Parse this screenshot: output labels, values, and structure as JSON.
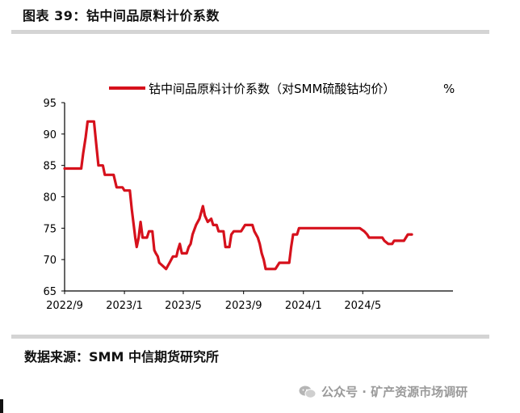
{
  "header": {
    "title": "图表 39：钴中间品原料计价系数"
  },
  "footer": {
    "source": "数据来源：SMM 中信期货研究所",
    "watermark": "公众号 · 矿产资源市场调研",
    "watermark_icon": "wechat-icon"
  },
  "chart_data": {
    "type": "line",
    "title": "",
    "xlabel": "",
    "ylabel": "",
    "legend": {
      "position": "top-right",
      "unit": "%"
    },
    "ylim": [
      65,
      95
    ],
    "yticks": [
      65,
      70,
      75,
      80,
      85,
      90,
      95
    ],
    "xlim": [
      "2022-09-01",
      "2024-11-01"
    ],
    "xticks": [
      {
        "date": "2022-09-01",
        "label": "2022/9"
      },
      {
        "date": "2023-01-01",
        "label": "2023/1"
      },
      {
        "date": "2023-05-01",
        "label": "2023/5"
      },
      {
        "date": "2023-09-01",
        "label": "2023/9"
      },
      {
        "date": "2024-01-01",
        "label": "2024/1"
      },
      {
        "date": "2024-05-01",
        "label": "2024/5"
      }
    ],
    "colors": {
      "series": "#d6111c",
      "axis": "#000000"
    },
    "series": [
      {
        "name": "钴中间品原料计价系数（对SMM硫酸钴均价）",
        "points": [
          [
            "2022-09-01",
            84.5
          ],
          [
            "2022-10-05",
            84.5
          ],
          [
            "2022-10-09",
            87.0
          ],
          [
            "2022-10-14",
            89.5
          ],
          [
            "2022-10-18",
            92.0
          ],
          [
            "2022-10-31",
            92.0
          ],
          [
            "2022-11-05",
            88.0
          ],
          [
            "2022-11-09",
            85.0
          ],
          [
            "2022-11-18",
            85.0
          ],
          [
            "2022-11-22",
            83.5
          ],
          [
            "2022-12-10",
            83.5
          ],
          [
            "2022-12-16",
            81.5
          ],
          [
            "2022-12-28",
            81.5
          ],
          [
            "2023-01-01",
            81.0
          ],
          [
            "2023-01-12",
            81.0
          ],
          [
            "2023-01-16",
            78.0
          ],
          [
            "2023-01-20",
            75.5
          ],
          [
            "2023-01-23",
            73.5
          ],
          [
            "2023-01-26",
            72.0
          ],
          [
            "2023-01-30",
            73.5
          ],
          [
            "2023-02-03",
            76.0
          ],
          [
            "2023-02-07",
            73.5
          ],
          [
            "2023-02-16",
            73.5
          ],
          [
            "2023-02-20",
            74.5
          ],
          [
            "2023-02-27",
            74.5
          ],
          [
            "2023-03-03",
            71.5
          ],
          [
            "2023-03-06",
            71.0
          ],
          [
            "2023-03-10",
            70.5
          ],
          [
            "2023-03-13",
            69.5
          ],
          [
            "2023-03-20",
            69.0
          ],
          [
            "2023-03-27",
            68.5
          ],
          [
            "2023-04-03",
            69.5
          ],
          [
            "2023-04-10",
            70.5
          ],
          [
            "2023-04-17",
            70.5
          ],
          [
            "2023-04-20",
            71.5
          ],
          [
            "2023-04-24",
            72.5
          ],
          [
            "2023-04-28",
            71.0
          ],
          [
            "2023-05-08",
            71.0
          ],
          [
            "2023-05-12",
            72.0
          ],
          [
            "2023-05-16",
            72.5
          ],
          [
            "2023-05-20",
            74.0
          ],
          [
            "2023-05-27",
            75.5
          ],
          [
            "2023-06-03",
            76.5
          ],
          [
            "2023-06-10",
            78.5
          ],
          [
            "2023-06-14",
            77.0
          ],
          [
            "2023-06-20",
            76.0
          ],
          [
            "2023-06-27",
            76.5
          ],
          [
            "2023-07-01",
            75.5
          ],
          [
            "2023-07-08",
            75.5
          ],
          [
            "2023-07-12",
            74.5
          ],
          [
            "2023-07-22",
            74.5
          ],
          [
            "2023-07-26",
            72.0
          ],
          [
            "2023-08-03",
            72.0
          ],
          [
            "2023-08-07",
            74.0
          ],
          [
            "2023-08-12",
            74.5
          ],
          [
            "2023-08-27",
            74.5
          ],
          [
            "2023-09-04",
            75.5
          ],
          [
            "2023-09-19",
            75.5
          ],
          [
            "2023-09-23",
            74.5
          ],
          [
            "2023-09-30",
            73.5
          ],
          [
            "2023-10-04",
            72.5
          ],
          [
            "2023-10-08",
            71.0
          ],
          [
            "2023-10-12",
            70.0
          ],
          [
            "2023-10-16",
            68.5
          ],
          [
            "2023-11-05",
            68.5
          ],
          [
            "2023-11-09",
            69.0
          ],
          [
            "2023-11-13",
            69.5
          ],
          [
            "2023-12-03",
            69.5
          ],
          [
            "2023-12-07",
            72.0
          ],
          [
            "2023-12-11",
            74.0
          ],
          [
            "2023-12-19",
            74.0
          ],
          [
            "2023-12-23",
            75.0
          ],
          [
            "2024-04-25",
            75.0
          ],
          [
            "2024-05-04",
            74.5
          ],
          [
            "2024-05-10",
            74.0
          ],
          [
            "2024-05-14",
            73.5
          ],
          [
            "2024-06-10",
            73.5
          ],
          [
            "2024-06-14",
            73.0
          ],
          [
            "2024-06-22",
            72.5
          ],
          [
            "2024-06-30",
            72.5
          ],
          [
            "2024-07-04",
            73.0
          ],
          [
            "2024-07-24",
            73.0
          ],
          [
            "2024-07-28",
            73.5
          ],
          [
            "2024-08-01",
            74.0
          ],
          [
            "2024-08-09",
            74.0
          ]
        ]
      }
    ]
  }
}
